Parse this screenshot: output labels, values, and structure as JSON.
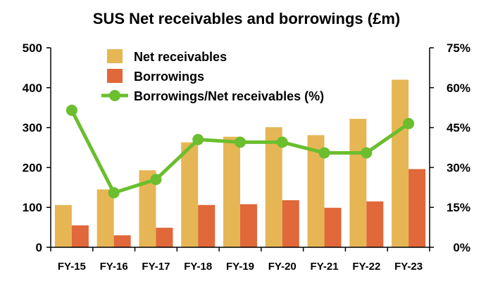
{
  "chart_data": {
    "type": "bar",
    "title": "SUS Net receivables and borrowings (£m)",
    "categories": [
      "FY-15",
      "FY-16",
      "FY-17",
      "FY-18",
      "FY-19",
      "FY-20",
      "FY-21",
      "FY-22",
      "FY-23"
    ],
    "series": [
      {
        "name": "Net receivables",
        "type": "bar",
        "axis": "left",
        "color": "#E6B655",
        "values": [
          106,
          145,
          193,
          263,
          277,
          301,
          281,
          322,
          420
        ]
      },
      {
        "name": "Borrowings",
        "type": "bar",
        "axis": "left",
        "color": "#E0683A",
        "values": [
          55,
          30,
          49,
          106,
          108,
          118,
          99,
          115,
          196
        ]
      },
      {
        "name": "Borrowings/Net receivables (%)",
        "type": "line",
        "axis": "right",
        "color": "#6BBE2E",
        "values": [
          51.5,
          20.5,
          25.5,
          40.5,
          39.5,
          39.5,
          35.5,
          35.5,
          46.5
        ]
      }
    ],
    "y_left": {
      "min": 0,
      "max": 500,
      "ticks": [
        0,
        100,
        200,
        300,
        400,
        500
      ]
    },
    "y_right": {
      "min": 0,
      "max": 75,
      "ticks": [
        "0%",
        "15%",
        "30%",
        "45%",
        "60%",
        "75%"
      ]
    },
    "grid": false,
    "legend_position": "top-left inside plot"
  }
}
